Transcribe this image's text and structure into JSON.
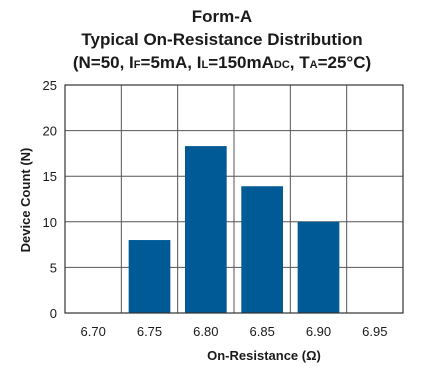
{
  "chart_data": {
    "type": "bar",
    "title": {
      "line1": "Form-A",
      "line2": "Typical On-Resistance Distribution",
      "line3": [
        {
          "text": "(N=50, I"
        },
        {
          "text": "F",
          "sub": true
        },
        {
          "text": "=5mA, I"
        },
        {
          "text": "L",
          "sub": true
        },
        {
          "text": "=150mA"
        },
        {
          "text": "DC",
          "sub": true
        },
        {
          "text": ", T"
        },
        {
          "text": "A",
          "sub": true
        },
        {
          "text": "=25°C)"
        }
      ]
    },
    "xlabel": "On-Resistance (Ω)",
    "ylabel": "Device Count (N)",
    "categories": [
      "6.70",
      "6.75",
      "6.80",
      "6.85",
      "6.90",
      "6.95"
    ],
    "values": [
      0,
      8,
      18.3,
      13.9,
      10,
      0
    ],
    "ylim": [
      0,
      25
    ],
    "yticks": [
      0,
      5,
      10,
      15,
      20,
      25
    ],
    "grid": true,
    "bar_color": "#005a96"
  }
}
